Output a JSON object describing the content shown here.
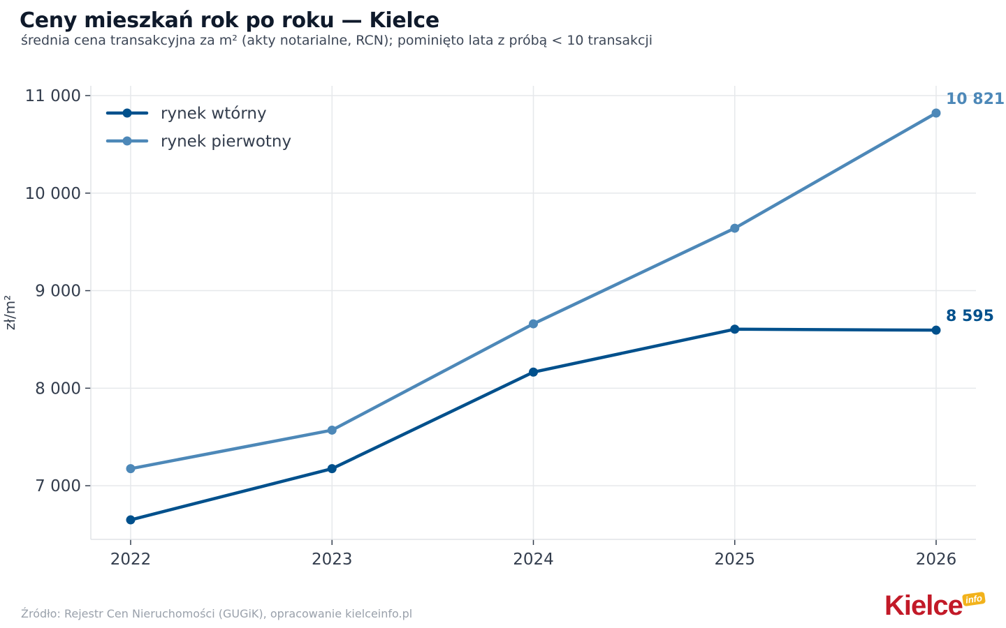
{
  "header": {
    "title": "Ceny mieszkań rok po roku — Kielce",
    "subtitle": "średnia cena transakcyjna za m² (akty notarialne, RCN); pominięto lata z próbą < 10 transakcji"
  },
  "footer": {
    "source": "Źródło: Rejestr Cen Nieruchomości (GUGiK), opracowanie kielceinfo.pl",
    "logo_text": "Kielce",
    "logo_badge": "info"
  },
  "chart_data": {
    "type": "line",
    "x": [
      2022,
      2023,
      2024,
      2025,
      2026
    ],
    "xtick_labels": [
      "2022",
      "2023",
      "2024",
      "2025",
      "2026"
    ],
    "ylabel": "zł/m²",
    "ylim": [
      6450,
      11100
    ],
    "yticks": [
      7000,
      8000,
      9000,
      10000,
      11000
    ],
    "ytick_labels": [
      "7 000",
      "8 000",
      "9 000",
      "10 000",
      "11 000"
    ],
    "grid": true,
    "legend_position": "top-left",
    "series": [
      {
        "name": "rynek wtórny",
        "color": "#00508c",
        "values": [
          6650,
          7175,
          8165,
          8605,
          8595
        ],
        "end_label": "8 595"
      },
      {
        "name": "rynek pierwotny",
        "color": "#4d88b8",
        "values": [
          7175,
          7570,
          8660,
          9640,
          10821
        ],
        "end_label": "10 821"
      }
    ]
  }
}
